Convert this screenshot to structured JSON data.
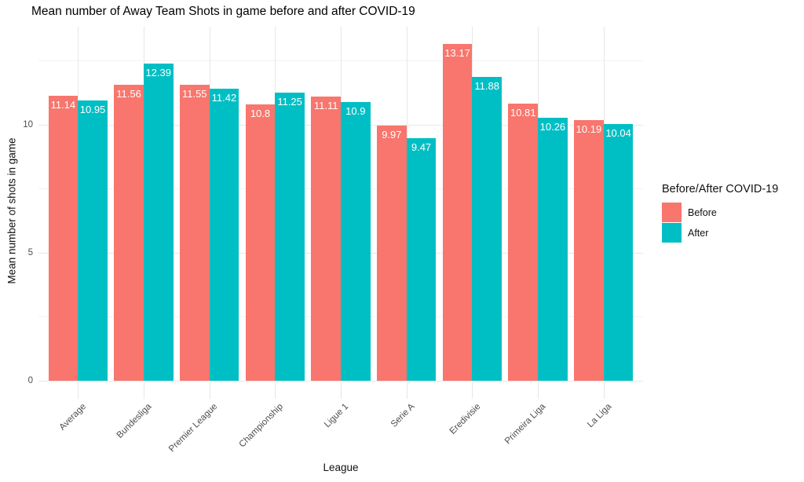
{
  "title": "Mean number of Away Team Shots in game before and after COVID-19",
  "chart_data": {
    "type": "bar",
    "subtype": "grouped",
    "title": "Mean number of Away Team Shots in game before and after COVID-19",
    "xlabel": "League",
    "ylabel": "Mean number of shots in game",
    "categories": [
      "Average",
      "Bundesliga",
      "Premier League",
      "Championship",
      "Ligue 1",
      "Serie A",
      "Eredivisie",
      "Primeira Liga",
      "La Liga"
    ],
    "series": [
      {
        "name": "Before",
        "color": "#F8766D",
        "values": [
          11.14,
          11.56,
          11.55,
          10.8,
          11.11,
          9.97,
          13.17,
          10.81,
          10.19
        ]
      },
      {
        "name": "After",
        "color": "#00BFC4",
        "values": [
          10.95,
          12.39,
          11.42,
          11.25,
          10.9,
          9.47,
          11.88,
          10.26,
          10.04
        ]
      }
    ],
    "bar_labels_color": "#ffffff",
    "yticks": [
      0,
      5,
      10
    ],
    "yminor": [
      2.5,
      7.5,
      12.5
    ],
    "ylim": [
      0,
      13.83
    ],
    "grid": "major-and-minor",
    "legend": {
      "title": "Before/After COVID-19",
      "position": "right",
      "entries": [
        "Before",
        "After"
      ]
    }
  }
}
